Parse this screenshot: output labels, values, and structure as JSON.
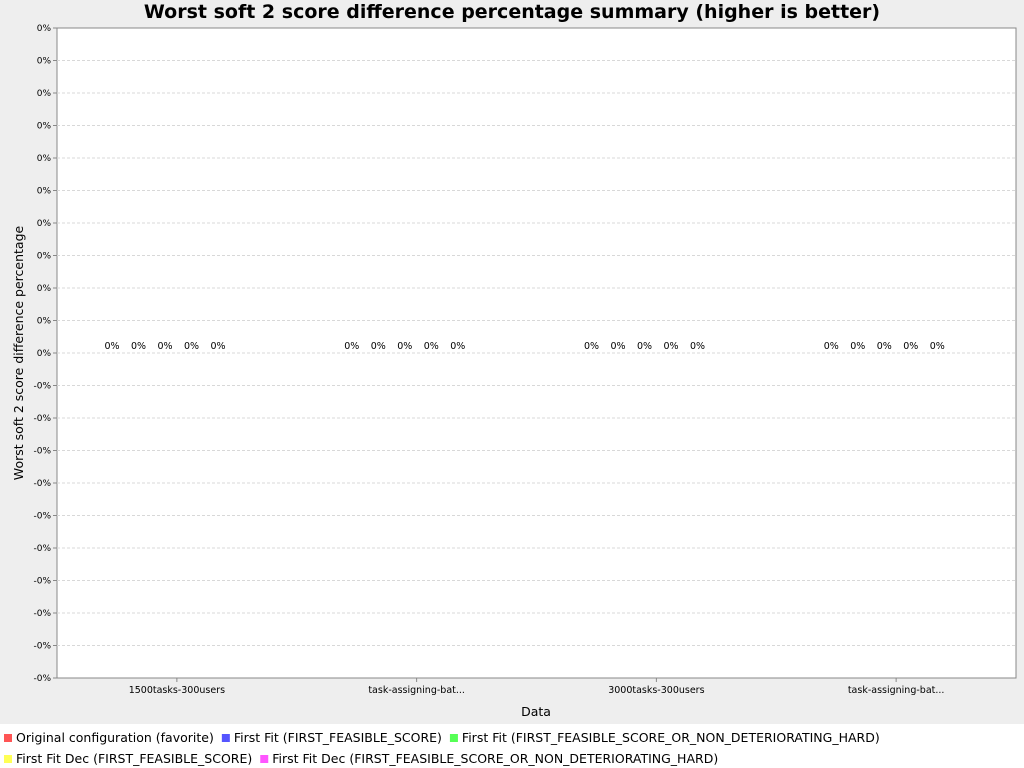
{
  "chart_data": {
    "type": "bar",
    "title": "Worst soft 2 score difference percentage summary (higher is better)",
    "xlabel": "Data",
    "ylabel": "Worst soft 2 score difference percentage",
    "categories": [
      "1500tasks-300users",
      "task-assigning-bat...",
      "3000tasks-300users",
      "task-assigning-bat..."
    ],
    "y_tick_labels": [
      "0%",
      "0%",
      "0%",
      "0%",
      "0%",
      "0%",
      "0%",
      "0%",
      "0%",
      "0%",
      "0%",
      "-0%",
      "-0%",
      "-0%",
      "-0%",
      "-0%",
      "-0%",
      "-0%",
      "-0%",
      "-0%",
      "-0%"
    ],
    "ylim": [
      -1,
      1
    ],
    "grid": true,
    "legend_position": "bottom",
    "series": [
      {
        "name": "Original configuration (favorite)",
        "color": "#ff5555",
        "values": [
          0,
          0,
          0,
          0
        ],
        "labels": [
          "0%",
          "0%",
          "0%",
          "0%"
        ]
      },
      {
        "name": "First Fit (FIRST_FEASIBLE_SCORE)",
        "color": "#5555ff",
        "values": [
          0,
          0,
          0,
          0
        ],
        "labels": [
          "0%",
          "0%",
          "0%",
          "0%"
        ]
      },
      {
        "name": "First Fit (FIRST_FEASIBLE_SCORE_OR_NON_DETERIORATING_HARD)",
        "color": "#55ff55",
        "values": [
          0,
          0,
          0,
          0
        ],
        "labels": [
          "0%",
          "0%",
          "0%",
          "0%"
        ]
      },
      {
        "name": "First Fit Dec (FIRST_FEASIBLE_SCORE)",
        "color": "#ffff55",
        "values": [
          0,
          0,
          0,
          0
        ],
        "labels": [
          "0%",
          "0%",
          "0%",
          "0%"
        ]
      },
      {
        "name": "First Fit Dec (FIRST_FEASIBLE_SCORE_OR_NON_DETERIORATING_HARD)",
        "color": "#ff55ff",
        "values": [
          0,
          0,
          0,
          0
        ],
        "labels": [
          "0%",
          "0%",
          "0%",
          "0%"
        ]
      }
    ]
  }
}
